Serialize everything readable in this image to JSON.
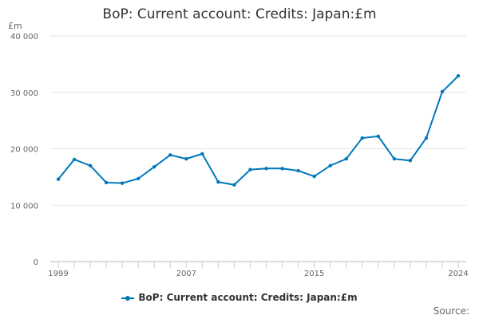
{
  "chart_data": {
    "type": "line",
    "title": "BoP: Current account: Credits: Japan:£m",
    "ylabel": "£m",
    "xlabel": "",
    "source_label": "Source:",
    "ylim": [
      0,
      40000
    ],
    "yticks": [
      0,
      10000,
      20000,
      30000,
      40000
    ],
    "ytick_labels": [
      "0",
      "10 000",
      "20 000",
      "30 000",
      "40 000"
    ],
    "xlim": [
      1999,
      2024
    ],
    "xticks": [
      1999,
      2007,
      2015,
      2024
    ],
    "xtick_labels": [
      "1999",
      "2007",
      "2015",
      "2024"
    ],
    "grid": true,
    "legend_position": "bottom",
    "color": "#0077bb",
    "series": [
      {
        "name": "BoP: Current account: Credits: Japan:£m",
        "x": [
          1999,
          2000,
          2001,
          2002,
          2003,
          2004,
          2005,
          2006,
          2007,
          2008,
          2009,
          2010,
          2011,
          2012,
          2013,
          2014,
          2015,
          2016,
          2017,
          2018,
          2019,
          2020,
          2021,
          2022,
          2023,
          2024
        ],
        "values": [
          14600,
          18100,
          17000,
          14000,
          13900,
          14700,
          16800,
          18900,
          18200,
          19100,
          14100,
          13600,
          16300,
          16500,
          16500,
          16100,
          15100,
          17000,
          18200,
          21900,
          22200,
          18200,
          17900,
          21900,
          30100,
          32900
        ]
      }
    ]
  }
}
